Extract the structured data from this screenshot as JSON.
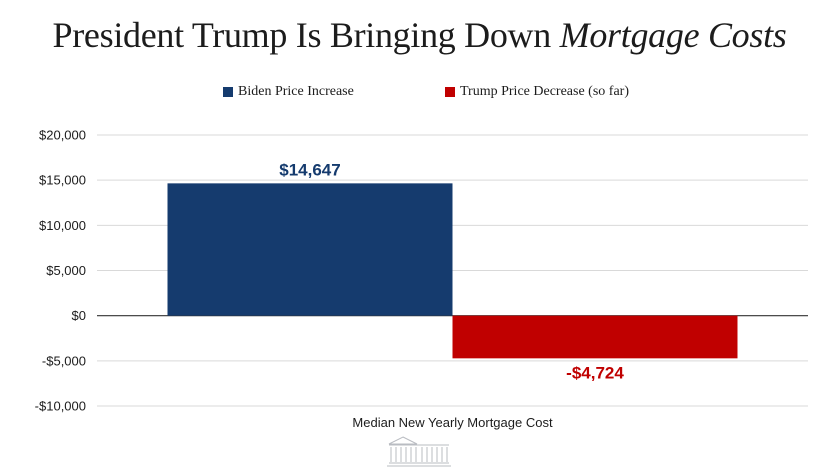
{
  "title": {
    "prefix": "President Trump Is Bringing Down ",
    "italic": "Mortgage Costs"
  },
  "colors": {
    "biden": "#153b6e",
    "trump": "#c00000",
    "text": "#1c1c1c"
  },
  "chart_data": {
    "type": "bar",
    "title": "President Trump Is Bringing Down Mortgage Costs",
    "categories": [
      "Median New Yearly Mortgage Cost"
    ],
    "series": [
      {
        "name": "Biden Price Increase",
        "values": [
          14647
        ],
        "label": "$14,647",
        "color": "#153b6e"
      },
      {
        "name": "Trump Price Decrease (so far)",
        "values": [
          -4724
        ],
        "label": "-$4,724",
        "color": "#c00000"
      }
    ],
    "ylim": [
      -10000,
      20000
    ],
    "yticks": [
      20000,
      15000,
      10000,
      5000,
      0,
      -5000,
      -10000
    ],
    "ytick_labels": [
      "$20,000",
      "$15,000",
      "$10,000",
      "$5,000",
      "$0",
      "-$5,000",
      "-$10,000"
    ],
    "xlabel": "Median New Yearly Mortgage Cost",
    "ylabel": "",
    "grid": true,
    "legend": "top-center"
  },
  "footer": {
    "logo": "white-house-icon"
  }
}
